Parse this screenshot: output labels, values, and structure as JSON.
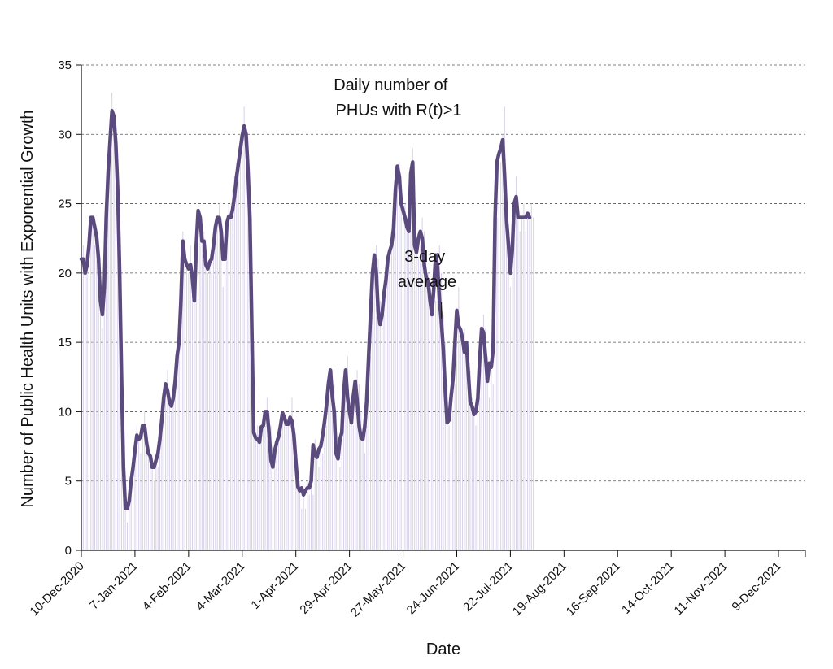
{
  "chart_data": {
    "type": "bar",
    "xlabel": "Date",
    "ylabel": "Number of Public Health Units with Exponential Growth",
    "ylim": [
      0,
      35
    ],
    "yticks": [
      0,
      5,
      10,
      15,
      20,
      25,
      30,
      35
    ],
    "xlim_dates": [
      "2020-12-10",
      "2021-12-23"
    ],
    "x_tick_labels": [
      "10-Dec-2020",
      "7-Jan-2021",
      "4-Feb-2021",
      "4-Mar-2021",
      "1-Apr-2021",
      "29-Apr-2021",
      "27-May-2021",
      "24-Jun-2021",
      "22-Jul-2021",
      "19-Aug-2021",
      "16-Sep-2021",
      "14-Oct-2021",
      "11-Nov-2021",
      "9-Dec-2021"
    ],
    "x_tick_dates": [
      "2020-12-10",
      "2021-01-07",
      "2021-02-04",
      "2021-03-04",
      "2021-04-01",
      "2021-04-29",
      "2021-05-27",
      "2021-06-24",
      "2021-07-22",
      "2021-08-19",
      "2021-09-16",
      "2021-10-14",
      "2021-11-11",
      "2021-12-09"
    ],
    "grid": "horizontal dashed",
    "bar_color": "#d9d3ea",
    "line_color": "#5b4a7e",
    "annotations": {
      "daily_label": "Daily number of PHUs with R(t)>1",
      "average_label": "3-day average"
    },
    "series_daily": {
      "name": "Daily number of PHUs with R(t)>1",
      "start": "2020-12-10",
      "values": [
        21,
        22,
        20,
        21,
        23,
        24,
        24,
        22,
        23,
        21,
        17,
        16,
        20,
        25,
        28,
        30,
        33,
        31,
        29,
        26,
        20,
        12,
        6,
        3,
        2,
        4,
        5,
        6,
        7,
        9,
        8,
        7,
        9,
        10,
        8,
        7,
        7,
        6,
        5,
        7,
        6,
        7,
        9,
        11,
        12,
        13,
        11,
        10,
        11,
        12,
        14,
        15,
        18,
        23,
        22,
        21,
        20,
        22,
        20,
        18,
        22,
        25,
        24,
        22,
        23,
        21,
        20,
        21,
        20,
        22,
        23,
        24,
        25,
        24,
        19,
        22,
        24,
        25,
        24,
        26,
        27,
        28,
        29,
        30,
        30,
        32,
        30,
        27,
        23,
        16,
        9,
        8,
        9,
        8,
        8,
        9,
        10,
        11,
        10,
        9,
        4,
        6,
        7,
        8,
        9,
        10,
        10,
        9,
        9,
        9,
        11,
        9,
        8,
        6,
        5,
        3,
        4,
        3,
        5,
        4,
        5,
        4,
        8,
        7,
        6,
        8,
        7,
        8,
        9,
        11,
        12,
        13,
        12,
        10,
        7,
        6,
        8,
        9,
        12,
        14,
        11,
        10,
        9,
        11,
        13,
        12,
        10,
        8,
        7,
        9,
        11,
        14,
        17,
        20,
        22,
        21,
        18,
        16,
        17,
        19,
        20,
        21,
        23,
        22,
        24,
        26,
        28,
        27,
        26,
        25,
        24,
        23,
        23,
        29,
        27,
        22,
        21,
        22,
        24,
        23,
        21,
        20,
        19,
        18,
        17,
        18,
        21,
        22,
        20,
        17,
        15,
        12,
        9,
        7,
        10,
        12,
        15,
        19,
        16,
        15,
        16,
        14,
        15,
        13,
        11,
        10,
        9,
        10,
        11,
        13,
        17,
        16,
        14,
        11,
        13,
        12,
        15,
        24,
        29,
        28,
        30,
        32,
        25,
        22,
        19,
        22,
        25,
        27,
        24,
        23,
        24,
        25,
        23,
        24,
        24,
        25,
        24
      ]
    },
    "series_avg": {
      "name": "3-day average",
      "start": "2020-12-10",
      "values": [
        21,
        21,
        20,
        20.6,
        22,
        24,
        24,
        23.3,
        22.6,
        21,
        18,
        17,
        19,
        24,
        27.3,
        29.5,
        31.7,
        31.3,
        29.3,
        26,
        20,
        12.5,
        6,
        3,
        3,
        3.6,
        5,
        6,
        7.2,
        8.3,
        8,
        8.2,
        9,
        9,
        7.8,
        7,
        6.8,
        6,
        6,
        6.5,
        7,
        8,
        9.4,
        11,
        12,
        11.5,
        10.7,
        10.4,
        11,
        12.2,
        14,
        15,
        18,
        22.3,
        21,
        20.6,
        20.3,
        20.6,
        19.6,
        18,
        22,
        24.5,
        24,
        22.3,
        22.3,
        20.6,
        20.3,
        20.8,
        21,
        22,
        23.3,
        24,
        24,
        23,
        21,
        21,
        23.6,
        24.1,
        24,
        24.6,
        25.6,
        26.9,
        27.9,
        28.9,
        29.9,
        30.6,
        30,
        27.5,
        24,
        16,
        8.5,
        8.1,
        8,
        7.8,
        8.9,
        9,
        10,
        10,
        8.5,
        6.5,
        6,
        7.2,
        7.8,
        8.2,
        9,
        9.9,
        9.6,
        9.1,
        9.1,
        9.6,
        9.3,
        8.3,
        6.4,
        4.6,
        4.3,
        4.5,
        4,
        4.3,
        4.5,
        4.5,
        5,
        7.6,
        6.9,
        6.7,
        7.3,
        7.5,
        8.3,
        9.3,
        10.5,
        12,
        13,
        11.2,
        10,
        7,
        6.6,
        8,
        8.5,
        11.5,
        13,
        11,
        10,
        9.2,
        11.1,
        12.2,
        10.8,
        9,
        8.1,
        8,
        9,
        10.8,
        14,
        17,
        20,
        21.3,
        20,
        17.2,
        16.3,
        17,
        18.5,
        19.5,
        21,
        21.6,
        22,
        23.2,
        26,
        27.7,
        27,
        25,
        24.5,
        24,
        23.3,
        23,
        27.2,
        28,
        22,
        21.5,
        22.5,
        23,
        22.5,
        20.6,
        19.7,
        19.4,
        18.1,
        17,
        18.8,
        21.3,
        20.4,
        18,
        16.5,
        14.4,
        11.5,
        9.2,
        9.4,
        11,
        12.3,
        14.8,
        17.3,
        16.2,
        15.9,
        15.3,
        14.3,
        15,
        12.9,
        10.7,
        10.4,
        9.8,
        10,
        11,
        13.8,
        16,
        15.7,
        14,
        12.2,
        13.5,
        13.2,
        14.5,
        24,
        28,
        28.6,
        29,
        29.6,
        27,
        23.8,
        22,
        20,
        21.7,
        25,
        25.5,
        24,
        24,
        24,
        24,
        24,
        24.3,
        24
      ]
    }
  }
}
